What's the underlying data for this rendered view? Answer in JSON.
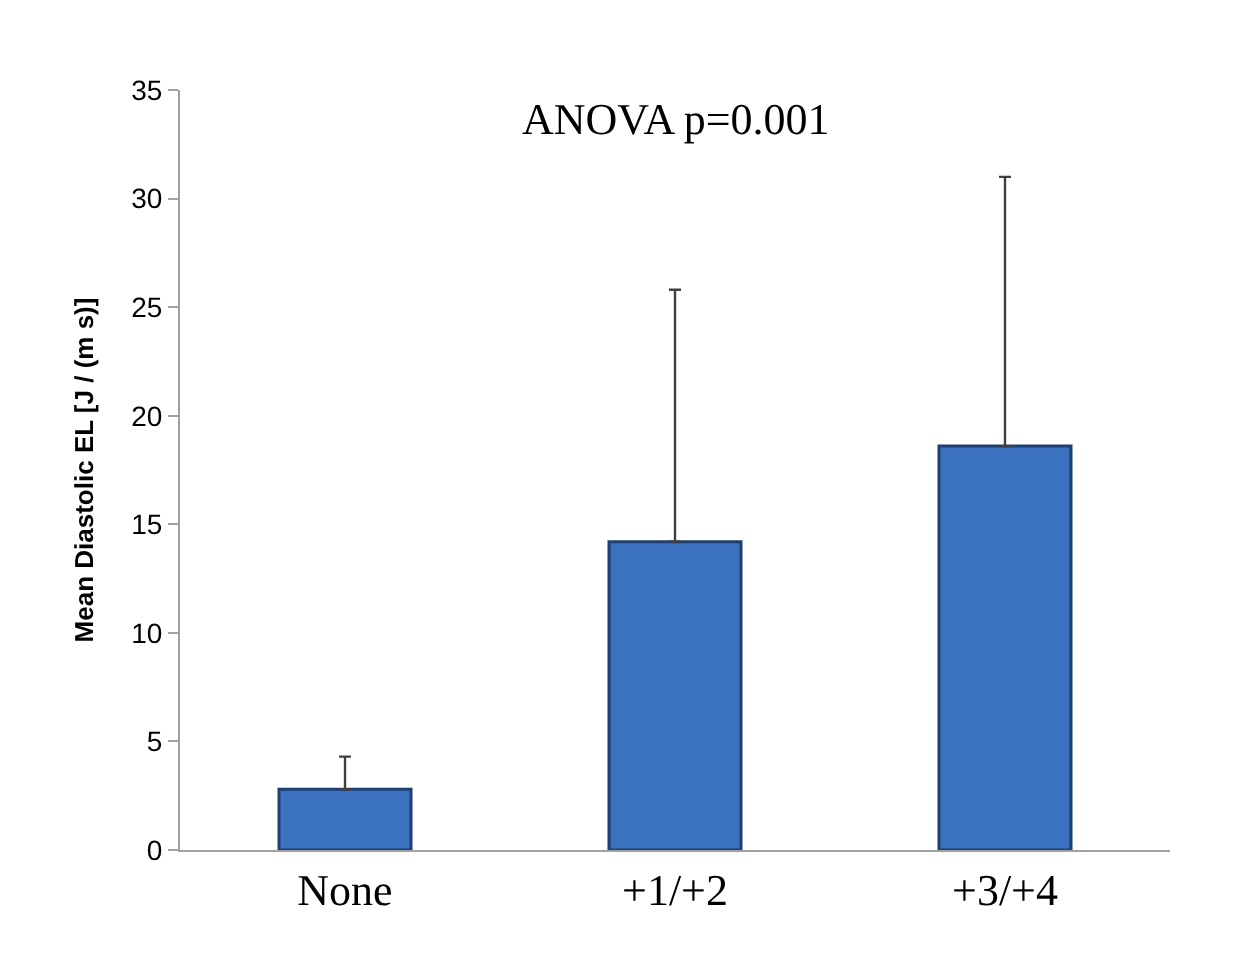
{
  "chart_data": {
    "type": "bar",
    "ylabel": "Mean Diastolic EL [J / (m s)]",
    "categories": [
      "None",
      "+1/+2",
      "+3/+4"
    ],
    "values": [
      2.8,
      14.2,
      18.6
    ],
    "errors": [
      [
        2.8,
        4.3
      ],
      [
        14.2,
        25.8
      ],
      [
        18.6,
        31.0
      ]
    ],
    "color": "#3a72c0",
    "ylim": [
      0,
      35
    ],
    "yticks": [
      0,
      5,
      10,
      15,
      20,
      25,
      30,
      35
    ],
    "annotations": [
      "ANOVA p=0.001"
    ]
  }
}
